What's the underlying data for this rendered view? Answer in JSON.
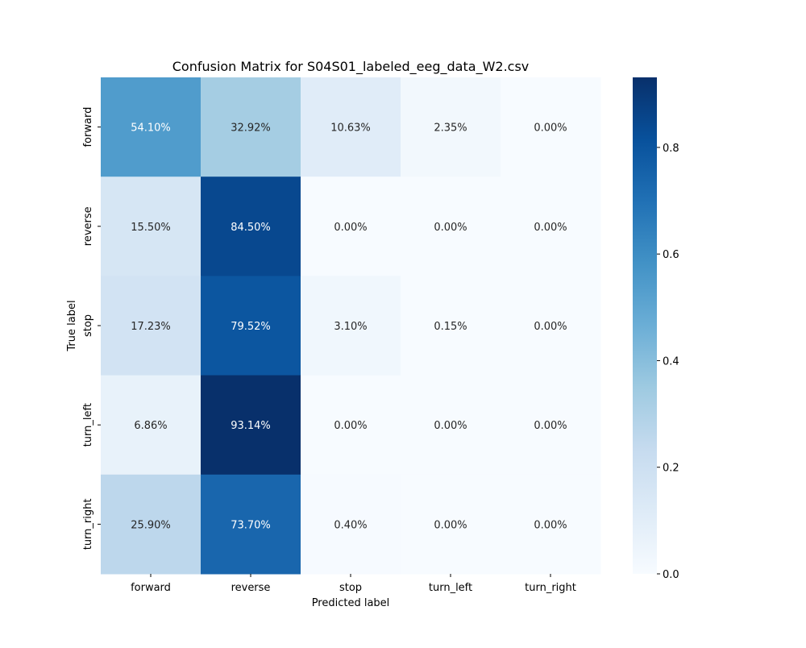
{
  "chart_data": {
    "type": "heatmap",
    "title": "Confusion Matrix for S04S01_labeled_eeg_data_W2.csv",
    "xlabel": "Predicted label",
    "ylabel": "True label",
    "x_categories": [
      "forward",
      "reverse",
      "stop",
      "turn_left",
      "turn_right"
    ],
    "y_categories": [
      "forward",
      "reverse",
      "stop",
      "turn_left",
      "turn_right"
    ],
    "values": [
      [
        0.541,
        0.3292,
        0.1063,
        0.0235,
        0.0
      ],
      [
        0.155,
        0.845,
        0.0,
        0.0,
        0.0
      ],
      [
        0.1723,
        0.7952,
        0.031,
        0.0015,
        0.0
      ],
      [
        0.0686,
        0.9314,
        0.0,
        0.0,
        0.0
      ],
      [
        0.259,
        0.737,
        0.004,
        0.0,
        0.0
      ]
    ],
    "annotations": [
      [
        "54.10%",
        "32.92%",
        "10.63%",
        "2.35%",
        "0.00%"
      ],
      [
        "15.50%",
        "84.50%",
        "0.00%",
        "0.00%",
        "0.00%"
      ],
      [
        "17.23%",
        "79.52%",
        "3.10%",
        "0.15%",
        "0.00%"
      ],
      [
        "6.86%",
        "93.14%",
        "0.00%",
        "0.00%",
        "0.00%"
      ],
      [
        "25.90%",
        "73.70%",
        "0.40%",
        "0.00%",
        "0.00%"
      ]
    ],
    "colormap": "Blues",
    "colormap_stops": [
      "#f7fbff",
      "#deebf7",
      "#c6dbef",
      "#9ecae1",
      "#6baed6",
      "#4292c6",
      "#2171b5",
      "#08519c",
      "#08306b"
    ],
    "vmin": 0,
    "vmax": 0.9314,
    "colorbar_ticks": [
      0.0,
      0.2,
      0.4,
      0.6,
      0.8
    ],
    "colorbar_tick_labels": [
      "0.0",
      "0.2",
      "0.4",
      "0.6",
      "0.8"
    ],
    "colorbar_placement": "right"
  }
}
